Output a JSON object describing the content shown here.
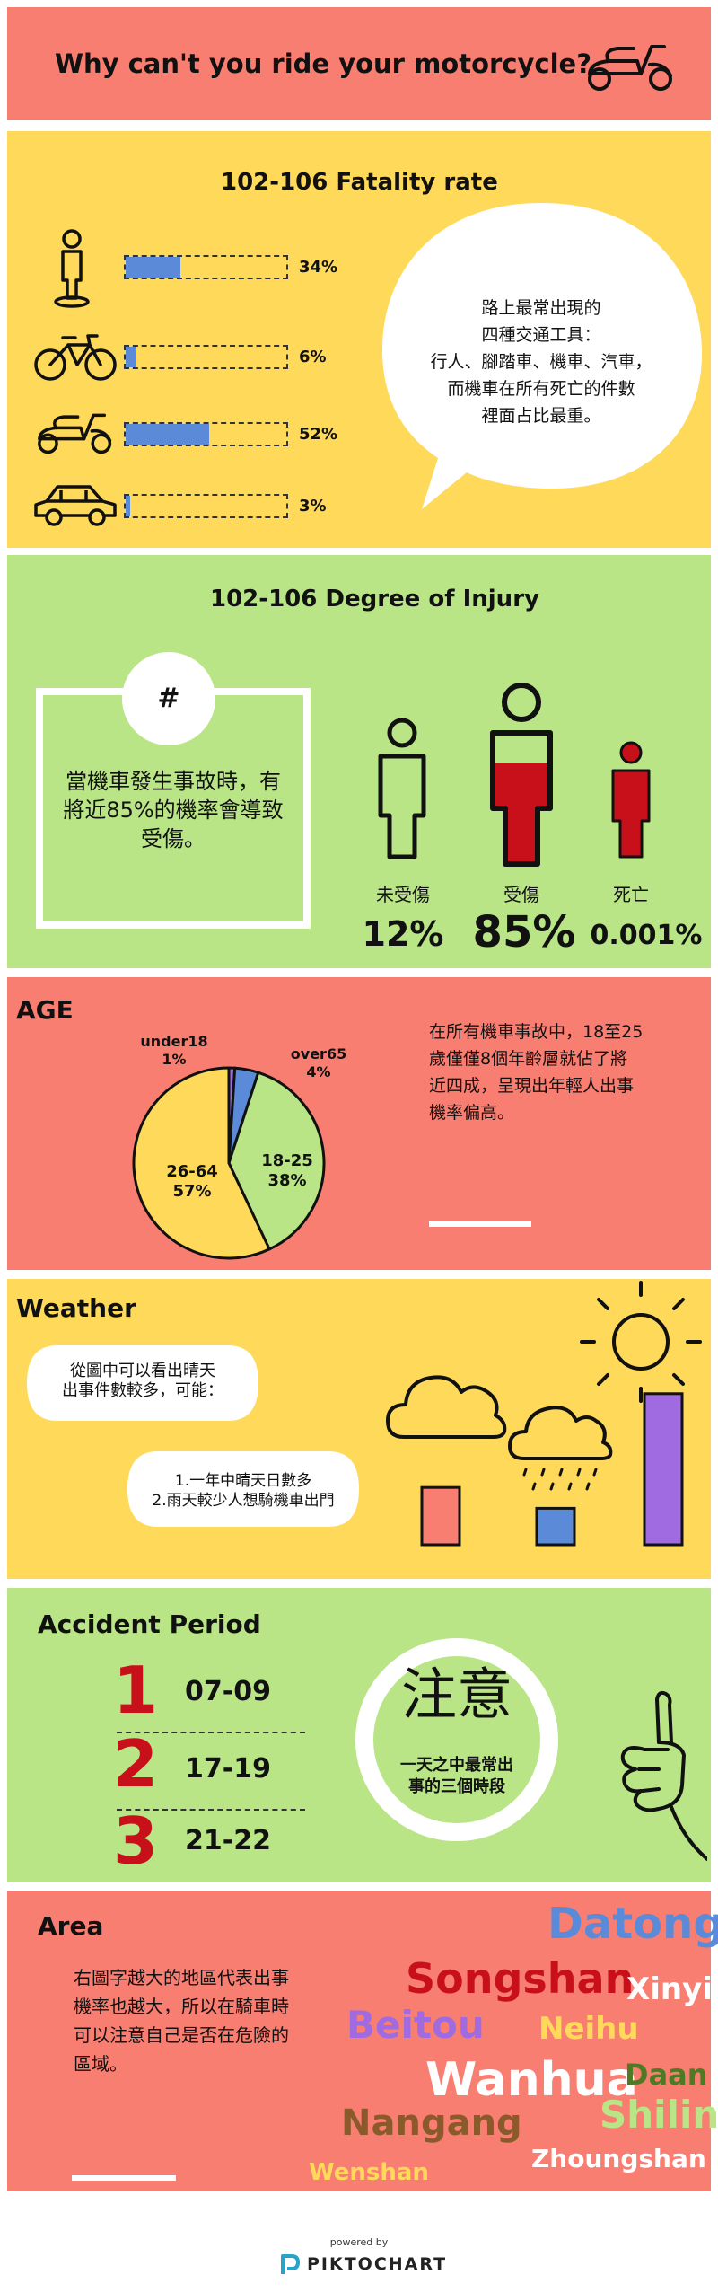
{
  "header": {
    "title": "Why can't you ride your motorcycle?",
    "icon": "scooter-icon"
  },
  "fatality": {
    "title": "102-106  Fatality rate",
    "rows": [
      {
        "icon": "pedestrian-icon",
        "percent_label": "34%",
        "value": 34
      },
      {
        "icon": "bicycle-icon",
        "percent_label": "6%",
        "value": 6
      },
      {
        "icon": "scooter-icon",
        "percent_label": "52%",
        "value": 52
      },
      {
        "icon": "car-icon",
        "percent_label": "3%",
        "value": 3
      }
    ],
    "bubble_lines": [
      "路上最常出現的",
      "四種交通工具：",
      "行人、腳踏車、機車、汽車，",
      "而機車在所有死亡的件數",
      "裡面占比最重。"
    ],
    "bar_color": "#5b8bd8"
  },
  "injury": {
    "title": "102-106  Degree of Injury",
    "hash": "#",
    "box_text": "當機車發生事故時，有將近85%的機率會導致受傷。",
    "people": [
      {
        "label": "未受傷",
        "percent": "12%"
      },
      {
        "label": "受傷",
        "percent": "85%"
      },
      {
        "label": "死亡",
        "percent": "0.001%"
      }
    ],
    "fill_color": "#c8101b"
  },
  "age": {
    "title": "AGE",
    "text": "在所有機車事故中，18至25歲僅僅8個年齡層就佔了將近四成，呈現出年輕人出事機率偏高。",
    "chart_data": {
      "type": "pie",
      "slices": [
        {
          "label": "under18",
          "value": 1,
          "value_label": "1%",
          "color": "#a06be0"
        },
        {
          "label": "over65",
          "value": 4,
          "value_label": "4%",
          "color": "#5b8bd8"
        },
        {
          "label": "18-25",
          "value": 38,
          "value_label": "38%",
          "color": "#b9e586"
        },
        {
          "label": "26-64",
          "value": 57,
          "value_label": "57%",
          "color": "#ffd95a"
        }
      ]
    }
  },
  "weather": {
    "title": "Weather",
    "bubble1": [
      "從圖中可以看出晴天",
      "出事件數較多，可能："
    ],
    "bubble2": [
      "1.一年中晴天日數多",
      "2.雨天較少人想騎機車出門"
    ],
    "chart_data": {
      "type": "bar",
      "categories": [
        "cloudy",
        "rainy",
        "sunny"
      ],
      "values": [
        22,
        14,
        58
      ],
      "colors": [
        "#f97e72",
        "#5b8bd8",
        "#a06be0"
      ]
    }
  },
  "period": {
    "title": "Accident  Period",
    "items": [
      {
        "num": "1",
        "time": "07-09"
      },
      {
        "num": "2",
        "time": "17-19"
      },
      {
        "num": "3",
        "time": "21-22"
      }
    ],
    "circle_title": "注意",
    "circle_text": [
      "一天之中最常出",
      "事的三個時段"
    ]
  },
  "area": {
    "title": "Area",
    "text": "右圖字越大的地區代表出事機率也越大，所以在騎車時可以注意自己是否在危險的區域。",
    "words": [
      {
        "text": "Datong",
        "size": 48,
        "color": "#5b8bd8"
      },
      {
        "text": "Songshan",
        "size": 46,
        "color": "#c8101b"
      },
      {
        "text": "Xinyi",
        "size": 34,
        "color": "#ffffff"
      },
      {
        "text": "Beitou",
        "size": 42,
        "color": "#a06be0"
      },
      {
        "text": "Neihu",
        "size": 34,
        "color": "#ffd95a"
      },
      {
        "text": "Wanhua",
        "size": 52,
        "color": "#ffffff"
      },
      {
        "text": "Daan",
        "size": 32,
        "color": "#4f7a24"
      },
      {
        "text": "Nangang",
        "size": 40,
        "color": "#8b5a2b"
      },
      {
        "text": "Shilin",
        "size": 42,
        "color": "#b9e586"
      },
      {
        "text": "Zhoungshan",
        "size": 28,
        "color": "#ffffff"
      },
      {
        "text": "Wenshan",
        "size": 26,
        "color": "#ffd95a"
      }
    ]
  },
  "footer": {
    "powered": "powered by",
    "brand": "PIKTOCHART"
  }
}
